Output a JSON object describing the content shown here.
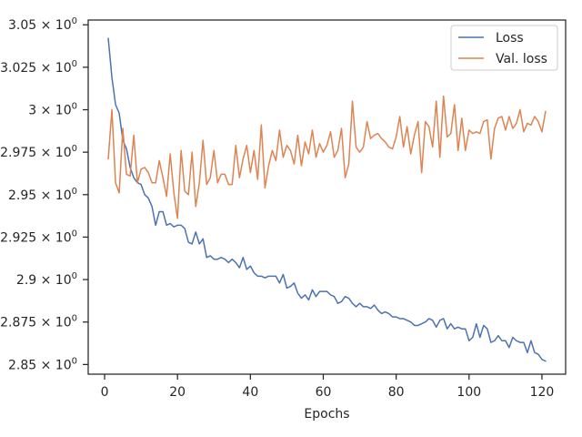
{
  "chart_data": {
    "type": "line",
    "title": "",
    "xlabel": "Epochs",
    "ylabel": "",
    "xlim": [
      -4.5,
      126.5
    ],
    "ylim": [
      2.8443,
      3.0528
    ],
    "x_ticks": [
      0,
      20,
      40,
      60,
      80,
      100,
      120
    ],
    "x_tick_labels": [
      "0",
      "20",
      "40",
      "60",
      "80",
      "100",
      "120"
    ],
    "y_ticks": [
      2.85,
      2.875,
      2.9,
      2.925,
      2.95,
      2.975,
      3.0,
      3.025,
      3.05
    ],
    "y_tick_labels": [
      "2.85 × 10^0",
      "2.875 × 10^0",
      "2.9 × 10^0",
      "2.925 × 10^0",
      "2.95 × 10^0",
      "2.975 × 10^0",
      "3 × 10^0",
      "3.025 × 10^0",
      "3.05 × 10^0"
    ],
    "y_tick_mantissas": [
      "2.85",
      "2.875",
      "2.9",
      "2.925",
      "2.95",
      "2.975",
      "3",
      "3.025",
      "3.05"
    ],
    "y_tick_multiplier": "× 10",
    "y_tick_exponent": "0",
    "grid": false,
    "legend_position": "top-right",
    "series": [
      {
        "name": "Loss",
        "color": "#4c72b0",
        "x": [
          1,
          2,
          3,
          4,
          5,
          6,
          7,
          8,
          9,
          10,
          11,
          12,
          13,
          14,
          15,
          16,
          17,
          18,
          19,
          20,
          21,
          22,
          23,
          24,
          25,
          26,
          27,
          28,
          29,
          30,
          31,
          32,
          33,
          34,
          35,
          36,
          37,
          38,
          39,
          40,
          41,
          42,
          43,
          44,
          45,
          46,
          47,
          48,
          49,
          50,
          51,
          52,
          53,
          54,
          55,
          56,
          57,
          58,
          59,
          60,
          61,
          62,
          63,
          64,
          65,
          66,
          67,
          68,
          69,
          70,
          71,
          72,
          73,
          74,
          75,
          76,
          77,
          78,
          79,
          80,
          81,
          82,
          83,
          84,
          85,
          86,
          87,
          88,
          89,
          90,
          91,
          92,
          93,
          94,
          95,
          96,
          97,
          98,
          99,
          100,
          101,
          102,
          103,
          104,
          105,
          106,
          107,
          108,
          109,
          110,
          111,
          112,
          113,
          114,
          115,
          116,
          117,
          118,
          119,
          120,
          121
        ],
        "values": [
          3.042,
          3.019,
          3.003,
          2.998,
          2.982,
          2.977,
          2.966,
          2.96,
          2.957,
          2.956,
          2.95,
          2.948,
          2.943,
          2.932,
          2.94,
          2.94,
          2.932,
          2.933,
          2.931,
          2.932,
          2.932,
          2.93,
          2.922,
          2.921,
          2.928,
          2.921,
          2.924,
          2.913,
          2.914,
          2.912,
          2.912,
          2.913,
          2.912,
          2.91,
          2.912,
          2.91,
          2.907,
          2.913,
          2.906,
          2.908,
          2.904,
          2.902,
          2.902,
          2.901,
          2.902,
          2.902,
          2.902,
          2.898,
          2.903,
          2.895,
          2.896,
          2.898,
          2.892,
          2.889,
          2.891,
          2.888,
          2.894,
          2.89,
          2.893,
          2.893,
          2.893,
          2.891,
          2.89,
          2.886,
          2.887,
          2.89,
          2.889,
          2.886,
          2.884,
          2.886,
          2.884,
          2.884,
          2.883,
          2.885,
          2.882,
          2.88,
          2.881,
          2.88,
          2.878,
          2.878,
          2.877,
          2.877,
          2.876,
          2.875,
          2.873,
          2.873,
          2.874,
          2.875,
          2.877,
          2.876,
          2.872,
          2.876,
          2.877,
          2.871,
          2.874,
          2.871,
          2.872,
          2.871,
          2.871,
          2.864,
          2.866,
          2.874,
          2.866,
          2.873,
          2.871,
          2.863,
          2.864,
          2.867,
          2.864,
          2.864,
          2.86,
          2.866,
          2.864,
          2.863,
          2.863,
          2.857,
          2.864,
          2.857,
          2.856,
          2.853,
          2.852
        ]
      },
      {
        "name": "Val. loss",
        "color": "#dd8452",
        "x": [
          1,
          2,
          3,
          4,
          5,
          6,
          7,
          8,
          9,
          10,
          11,
          12,
          13,
          14,
          15,
          16,
          17,
          18,
          19,
          20,
          21,
          22,
          23,
          24,
          25,
          26,
          27,
          28,
          29,
          30,
          31,
          32,
          33,
          34,
          35,
          36,
          37,
          38,
          39,
          40,
          41,
          42,
          43,
          44,
          45,
          46,
          47,
          48,
          49,
          50,
          51,
          52,
          53,
          54,
          55,
          56,
          57,
          58,
          59,
          60,
          61,
          62,
          63,
          64,
          65,
          66,
          67,
          68,
          69,
          70,
          71,
          72,
          73,
          74,
          75,
          76,
          77,
          78,
          79,
          80,
          81,
          82,
          83,
          84,
          85,
          86,
          87,
          88,
          89,
          90,
          91,
          92,
          93,
          94,
          95,
          96,
          97,
          98,
          99,
          100,
          101,
          102,
          103,
          104,
          105,
          106,
          107,
          108,
          109,
          110,
          111,
          112,
          113,
          114,
          115,
          116,
          117,
          118,
          119,
          120,
          121
        ],
        "values": [
          2.971,
          3.0,
          2.957,
          2.951,
          2.989,
          2.962,
          2.961,
          2.985,
          2.957,
          2.965,
          2.966,
          2.963,
          2.957,
          2.957,
          2.97,
          2.96,
          2.949,
          2.974,
          2.951,
          2.936,
          2.976,
          2.952,
          2.95,
          2.975,
          2.943,
          2.957,
          2.982,
          2.956,
          2.96,
          2.976,
          2.957,
          2.962,
          2.962,
          2.956,
          2.956,
          2.979,
          2.96,
          2.971,
          2.979,
          2.963,
          2.976,
          2.959,
          2.991,
          2.954,
          2.967,
          2.976,
          2.97,
          2.988,
          2.972,
          2.979,
          2.976,
          2.968,
          2.985,
          2.967,
          2.981,
          2.974,
          2.988,
          2.972,
          2.98,
          2.975,
          2.979,
          2.987,
          2.972,
          2.976,
          2.989,
          2.96,
          2.968,
          3.005,
          2.978,
          2.975,
          2.978,
          2.993,
          2.983,
          2.985,
          2.986,
          2.983,
          2.981,
          2.978,
          2.977,
          2.984,
          2.996,
          2.978,
          2.99,
          2.974,
          2.985,
          2.993,
          2.963,
          2.993,
          2.99,
          2.978,
          3.005,
          2.972,
          3.008,
          2.984,
          2.986,
          3.003,
          2.976,
          2.995,
          2.976,
          2.988,
          2.986,
          2.987,
          2.986,
          2.993,
          2.994,
          2.971,
          2.989,
          2.995,
          2.996,
          2.988,
          2.996,
          2.989,
          2.992,
          3.0,
          2.987,
          2.992,
          2.991,
          2.996,
          2.993,
          2.987,
          2.999
        ]
      }
    ]
  }
}
